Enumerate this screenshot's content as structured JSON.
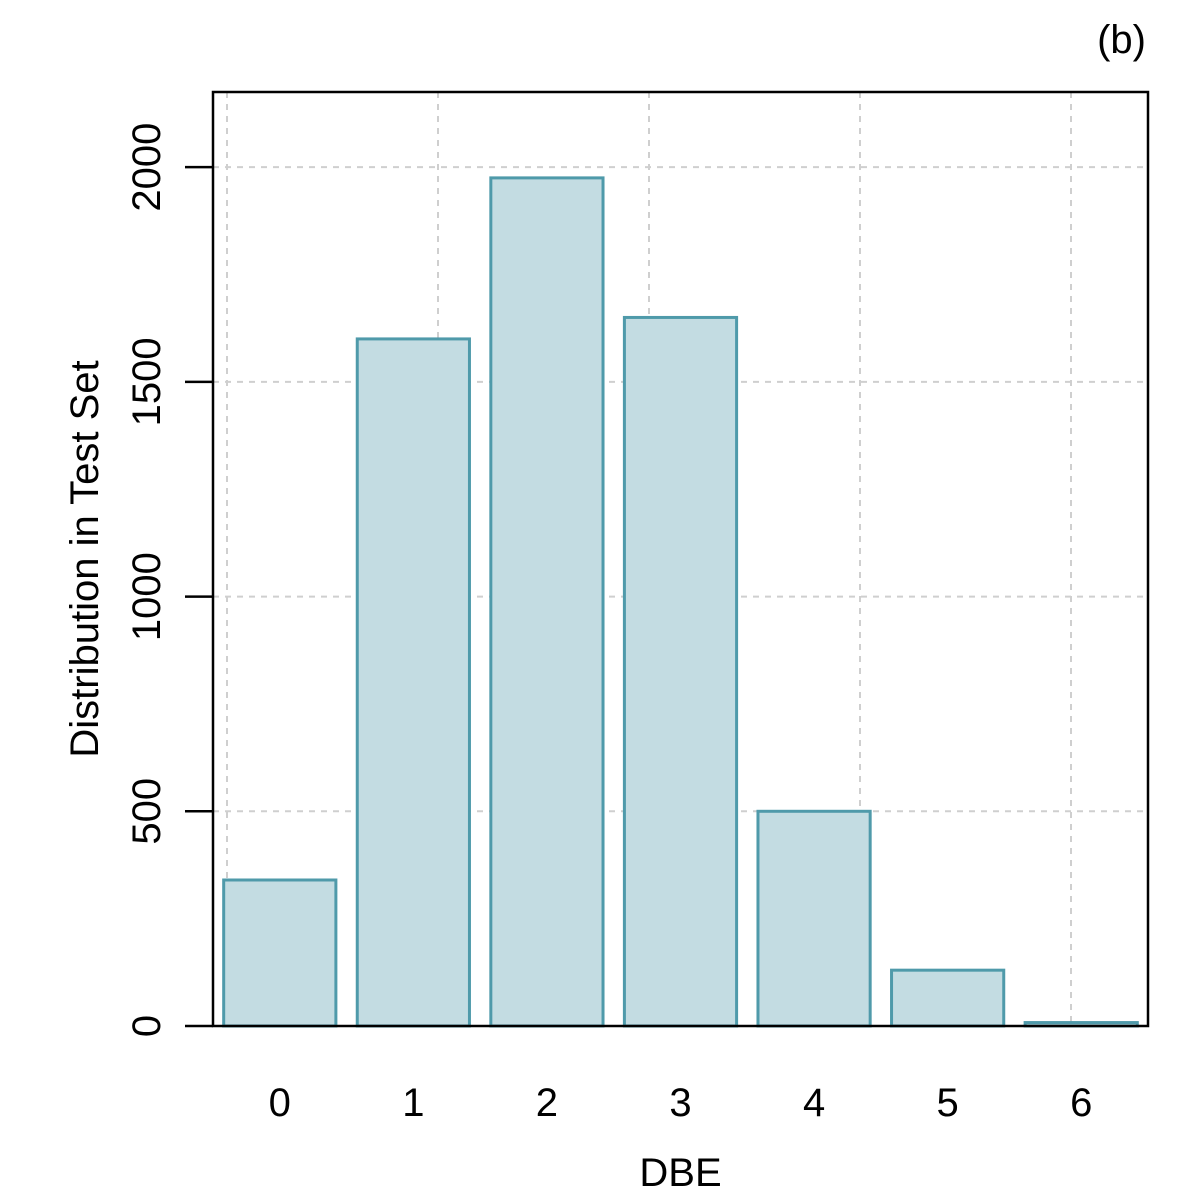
{
  "panel_label": "(b)",
  "chart_data": {
    "type": "bar",
    "categories": [
      "0",
      "1",
      "2",
      "3",
      "4",
      "5",
      "6"
    ],
    "values": [
      340,
      1600,
      1975,
      1650,
      500,
      130,
      8
    ],
    "xlabel": "DBE",
    "ylabel": "Distribution in Test Set",
    "ylim": [
      0,
      2175
    ],
    "yticks": [
      0,
      500,
      1000,
      1500,
      2000
    ],
    "grid": true,
    "bar_fill": "#c3dce2",
    "bar_stroke": "#4f9aaa"
  }
}
